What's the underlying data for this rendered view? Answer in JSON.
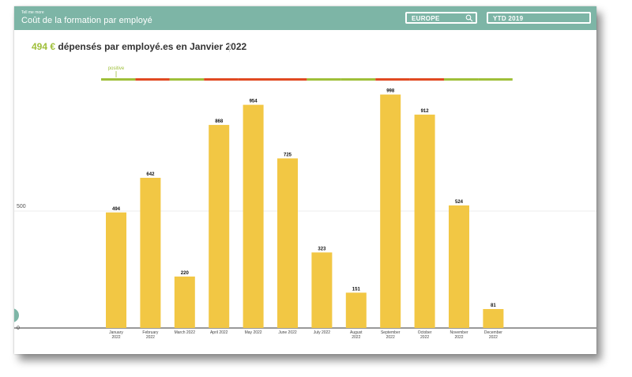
{
  "header": {
    "kicker": "Tell me more",
    "title": "Coût de la formation par employé",
    "region": "EUROPE",
    "period": "YTD 2019"
  },
  "headline": {
    "value": "494 €",
    "text": "dépensés par employé.es en Janvier 2022"
  },
  "colors": {
    "header": "#7db5a6",
    "bar": "#f2c744",
    "positive": "#9fbf3a",
    "negative": "#e04a22",
    "baseline": "#333333"
  },
  "icons": {
    "search": "search-icon"
  },
  "chart_data": {
    "type": "bar",
    "title": "",
    "xlabel": "",
    "ylabel": "",
    "ylim": [
      0,
      1000
    ],
    "yticks": [
      0,
      500
    ],
    "grid": true,
    "categories": [
      [
        "January",
        "2022"
      ],
      [
        "February",
        "2022"
      ],
      [
        "March 2022"
      ],
      [
        "April 2022"
      ],
      [
        "May 2022"
      ],
      [
        "June 2022"
      ],
      [
        "July 2022"
      ],
      [
        "August",
        "2022"
      ],
      [
        "September",
        "2022"
      ],
      [
        "October",
        "2022"
      ],
      [
        "November",
        "2022"
      ],
      [
        "December",
        "2022"
      ]
    ],
    "values": [
      494,
      642,
      220,
      868,
      954,
      725,
      323,
      151,
      998,
      912,
      524,
      81
    ],
    "trend_label": "positive",
    "trend": [
      "positive",
      "negative",
      "positive",
      "negative",
      "negative",
      "negative",
      "positive",
      "positive",
      "negative",
      "negative",
      "positive",
      "positive"
    ]
  }
}
